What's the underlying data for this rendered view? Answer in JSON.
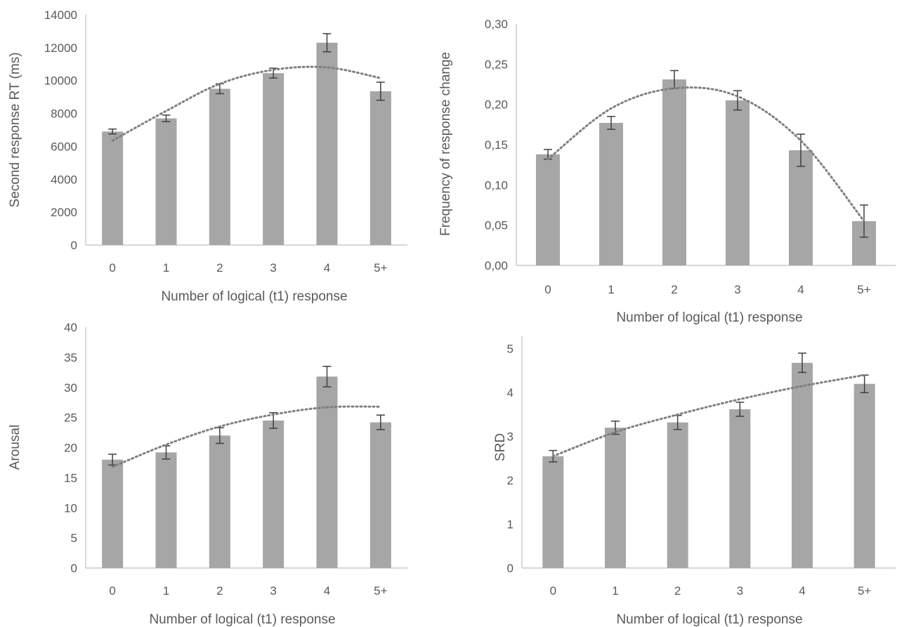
{
  "colors": {
    "bar": "#a6a6a6",
    "axis": "#bfbfbf",
    "text": "#595959",
    "error_bar": "#404040",
    "trend": "#7f7f7f"
  },
  "chart_data": [
    {
      "type": "bar",
      "categories": [
        "0",
        "1",
        "2",
        "3",
        "4",
        "5+"
      ],
      "values": [
        6900,
        7700,
        9500,
        10450,
        12300,
        9350
      ],
      "errors": [
        150,
        200,
        300,
        300,
        550,
        550
      ],
      "trendline": [
        6350,
        8150,
        9800,
        10650,
        10800,
        10150
      ],
      "xlabel": "Number of logical (t1) response",
      "ylabel": "Second response RT (ms)",
      "ylim": [
        0,
        14000
      ],
      "yticks": [
        "0",
        "2000",
        "4000",
        "6000",
        "8000",
        "10000",
        "12000",
        "14000"
      ],
      "grid": false
    },
    {
      "type": "bar",
      "categories": [
        "0",
        "1",
        "2",
        "3",
        "4",
        "5+"
      ],
      "values": [
        0.138,
        0.177,
        0.231,
        0.205,
        0.143,
        0.055
      ],
      "errors": [
        0.006,
        0.008,
        0.011,
        0.012,
        0.02,
        0.02
      ],
      "trendline": [
        0.132,
        0.195,
        0.22,
        0.21,
        0.155,
        0.055
      ],
      "xlabel": "Number of logical (t1) response",
      "ylabel": "Frequency of response change",
      "ylim": [
        0,
        0.3
      ],
      "yticks": [
        "0,00",
        "0,05",
        "0,10",
        "0,15",
        "0,20",
        "0,25",
        "0,30"
      ],
      "grid": false
    },
    {
      "type": "bar",
      "categories": [
        "0",
        "1",
        "2",
        "3",
        "4",
        "5+"
      ],
      "values": [
        18,
        19.2,
        22,
        24.5,
        31.8,
        24.2
      ],
      "errors": [
        0.9,
        1.1,
        1.3,
        1.3,
        1.7,
        1.2
      ],
      "trendline": [
        16.8,
        20.5,
        23.5,
        25.5,
        26.7,
        26.8
      ],
      "xlabel": "Number of logical (t1) response",
      "ylabel": "Arousal",
      "ylim": [
        0,
        40
      ],
      "yticks": [
        "0",
        "5",
        "10",
        "15",
        "20",
        "25",
        "30",
        "35",
        "40"
      ],
      "grid": false
    },
    {
      "type": "bar",
      "categories": [
        "0",
        "1",
        "2",
        "3",
        "4",
        "5+"
      ],
      "values": [
        2.55,
        3.2,
        3.32,
        3.62,
        4.68,
        4.2
      ],
      "errors": [
        0.13,
        0.15,
        0.16,
        0.16,
        0.22,
        0.2
      ],
      "trendline": [
        2.55,
        3.1,
        3.5,
        3.85,
        4.15,
        4.4
      ],
      "xlabel": "Number of logical (t1) response",
      "ylabel": "SRD",
      "ylim": [
        0,
        5.3
      ],
      "yticks": [
        "0",
        "1",
        "2",
        "3",
        "4",
        "5"
      ],
      "grid": false
    }
  ]
}
